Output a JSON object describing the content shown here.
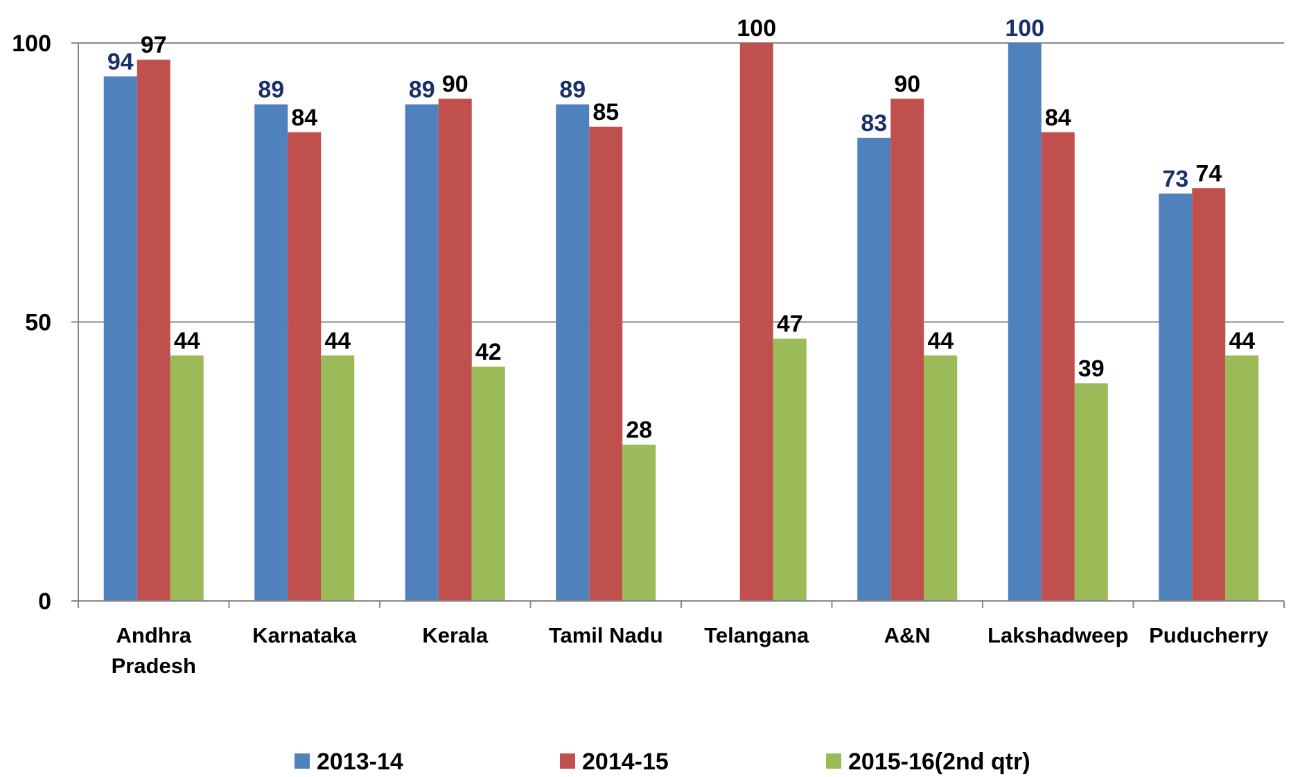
{
  "chart_data": {
    "type": "bar",
    "categories": [
      "Andhra Pradesh",
      "Karnataka",
      "Kerala",
      "Tamil Nadu",
      "Telangana",
      "A&N",
      "Lakshadweep",
      "Puducherry"
    ],
    "series": [
      {
        "name": "2013-14",
        "color": "#4f81bd",
        "label_color": "#1a2f6b",
        "values": [
          94,
          89,
          89,
          89,
          null,
          83,
          100,
          73
        ]
      },
      {
        "name": "2014-15",
        "color": "#c0504d",
        "label_color": "#000000",
        "values": [
          97,
          84,
          90,
          85,
          100,
          90,
          84,
          74
        ]
      },
      {
        "name": "2015-16(2nd qtr)",
        "color": "#9bbb59",
        "label_color": "#000000",
        "values": [
          44,
          44,
          42,
          28,
          47,
          44,
          39,
          44
        ]
      }
    ],
    "ylim": [
      0,
      100
    ],
    "yticks": [
      0,
      50,
      100
    ],
    "grid": true,
    "legend": "bottom"
  }
}
